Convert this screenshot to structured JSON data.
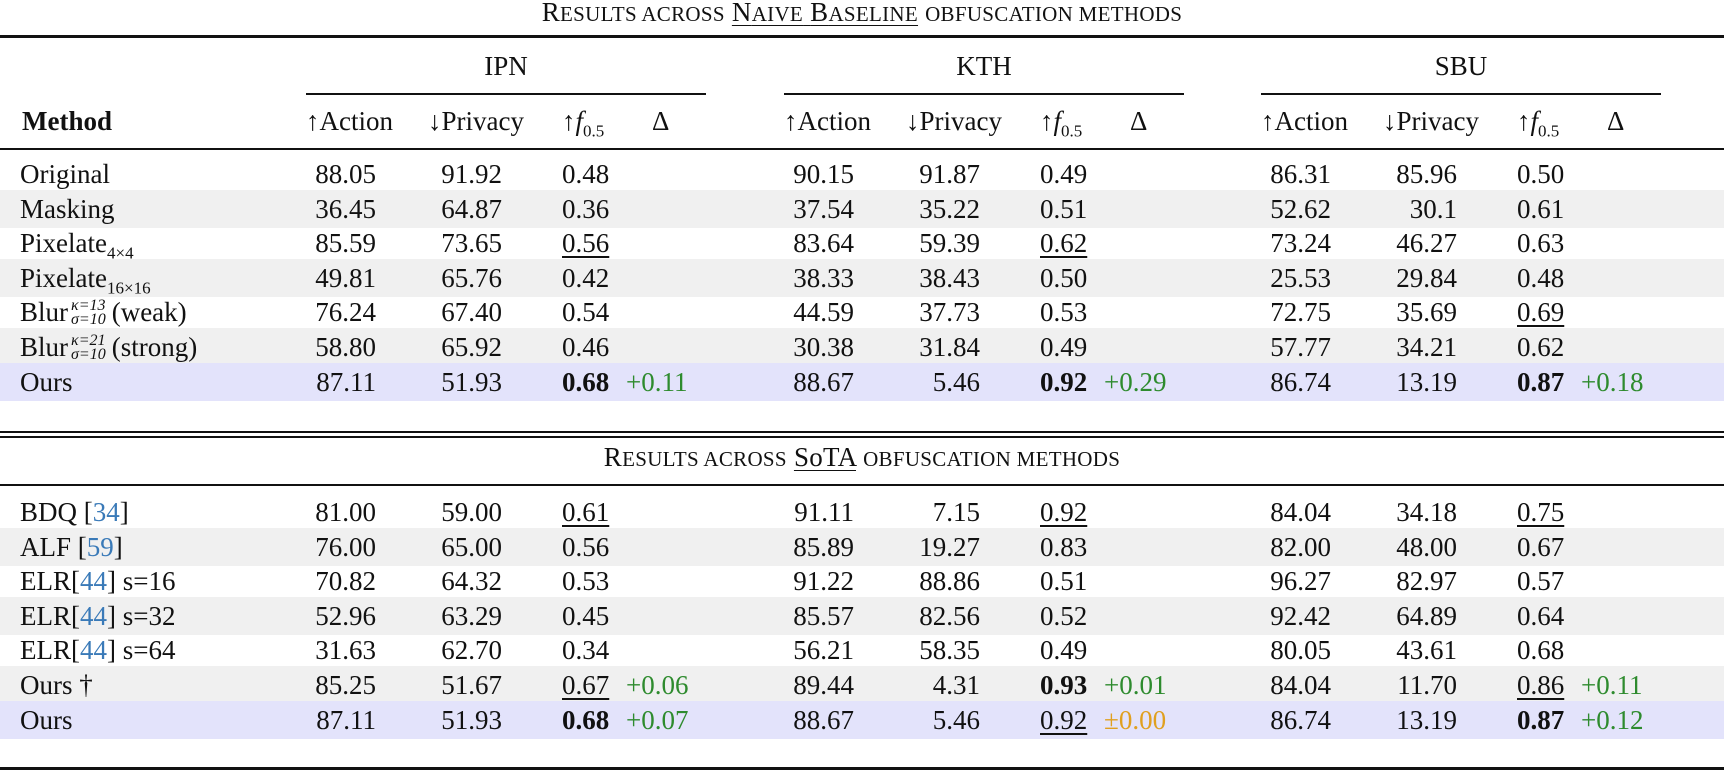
{
  "caption_naive": {
    "first_big": "R",
    "first_rest": "esults across",
    "ul_big": "N",
    "ul_rest": "aive",
    "ul_big2": "B",
    "ul_rest2": "aseline",
    "tail": "obfuscation methods"
  },
  "caption_sota": {
    "first_big": "R",
    "first_rest": "esults across",
    "ul_text": "SoTA",
    "tail": "obfuscation methods"
  },
  "groups": [
    "IPN",
    "KTH",
    "SBU"
  ],
  "header": {
    "method": "Method",
    "action": "↑Action",
    "privacy": "↓Privacy",
    "f_arrow": "↑",
    "f_symbol": "f",
    "f_sub": "0.5",
    "delta": "Δ"
  },
  "naive_rows": [
    {
      "method": "Original",
      "ipn": [
        "88.05",
        "91.92",
        "0.48",
        ""
      ],
      "kth": [
        "90.15",
        "91.87",
        "0.49",
        ""
      ],
      "sbu": [
        "86.31",
        "85.96",
        "0.50",
        ""
      ]
    },
    {
      "method": "Masking",
      "ipn": [
        "36.45",
        "64.87",
        "0.36",
        ""
      ],
      "kth": [
        "37.54",
        "35.22",
        "0.51",
        ""
      ],
      "sbu": [
        "52.62",
        "30.1",
        "0.61",
        ""
      ]
    },
    {
      "method": "Pixelate",
      "method_sub": "4×4",
      "ipn": [
        "85.59",
        "73.65",
        "0.56",
        ""
      ],
      "kth": [
        "83.64",
        "59.39",
        "0.62",
        ""
      ],
      "sbu": [
        "73.24",
        "46.27",
        "0.63",
        ""
      ]
    },
    {
      "method": "Pixelate",
      "method_sub": "16×16",
      "ipn": [
        "49.81",
        "65.76",
        "0.42",
        ""
      ],
      "kth": [
        "38.33",
        "38.43",
        "0.50",
        ""
      ],
      "sbu": [
        "25.53",
        "29.84",
        "0.48",
        ""
      ]
    },
    {
      "method": "Blur",
      "method_sup": "κ=13",
      "method_sub": "σ=10",
      "method_tail": "(weak)",
      "ipn": [
        "76.24",
        "67.40",
        "0.54",
        ""
      ],
      "kth": [
        "44.59",
        "37.73",
        "0.53",
        ""
      ],
      "sbu": [
        "72.75",
        "35.69",
        "0.69",
        ""
      ]
    },
    {
      "method": "Blur",
      "method_sup": "κ=21",
      "method_sub": "σ=10",
      "method_tail": "(strong)",
      "ipn": [
        "58.80",
        "65.92",
        "0.46",
        ""
      ],
      "kth": [
        "30.38",
        "31.84",
        "0.49",
        ""
      ],
      "sbu": [
        "57.77",
        "34.21",
        "0.62",
        ""
      ]
    },
    {
      "method": "Ours",
      "ipn": [
        "87.11",
        "51.93",
        "0.68",
        "+0.11"
      ],
      "kth": [
        "88.67",
        "5.46",
        "0.92",
        "+0.29"
      ],
      "sbu": [
        "86.74",
        "13.19",
        "0.87",
        "+0.18"
      ]
    }
  ],
  "sota_rows": [
    {
      "method": "BDQ [",
      "ref": "34",
      "method_tail": "]",
      "ipn": [
        "81.00",
        "59.00",
        "0.61",
        ""
      ],
      "kth": [
        "91.11",
        "7.15",
        "0.92",
        ""
      ],
      "sbu": [
        "84.04",
        "34.18",
        "0.75",
        ""
      ]
    },
    {
      "method": "ALF [",
      "ref": "59",
      "method_tail": "]",
      "ipn": [
        "76.00",
        "65.00",
        "0.56",
        ""
      ],
      "kth": [
        "85.89",
        "19.27",
        "0.83",
        ""
      ],
      "sbu": [
        "82.00",
        "48.00",
        "0.67",
        ""
      ]
    },
    {
      "method": "ELR[",
      "ref": "44",
      "method_tail": "] s=16",
      "ipn": [
        "70.82",
        "64.32",
        "0.53",
        ""
      ],
      "kth": [
        "91.22",
        "88.86",
        "0.51",
        ""
      ],
      "sbu": [
        "96.27",
        "82.97",
        "0.57",
        ""
      ]
    },
    {
      "method": "ELR[",
      "ref": "44",
      "method_tail": "] s=32",
      "ipn": [
        "52.96",
        "63.29",
        "0.45",
        ""
      ],
      "kth": [
        "85.57",
        "82.56",
        "0.52",
        ""
      ],
      "sbu": [
        "92.42",
        "64.89",
        "0.64",
        ""
      ]
    },
    {
      "method": "ELR[",
      "ref": "44",
      "method_tail": "] s=64",
      "ipn": [
        "31.63",
        "62.70",
        "0.34",
        ""
      ],
      "kth": [
        "56.21",
        "58.35",
        "0.49",
        ""
      ],
      "sbu": [
        "80.05",
        "43.61",
        "0.68",
        ""
      ]
    },
    {
      "method": "Ours †",
      "ipn": [
        "85.25",
        "51.67",
        "0.67",
        "+0.06"
      ],
      "kth": [
        "89.44",
        "4.31",
        "0.93",
        "+0.01"
      ],
      "sbu": [
        "84.04",
        "11.70",
        "0.86",
        "+0.11"
      ]
    },
    {
      "method": "Ours",
      "ipn": [
        "87.11",
        "51.93",
        "0.68",
        "+0.07"
      ],
      "kth": [
        "88.67",
        "5.46",
        "0.92",
        "±0.00"
      ],
      "sbu": [
        "86.74",
        "13.19",
        "0.87",
        "+0.12"
      ]
    }
  ],
  "colors": {
    "delta_positive": "#2e8b2e",
    "delta_neutral": "#e0a020",
    "citation": "#3a7ab8",
    "ours_row_bg": "#e3e3fb",
    "alt_row_bg": "#f0f0f0"
  }
}
